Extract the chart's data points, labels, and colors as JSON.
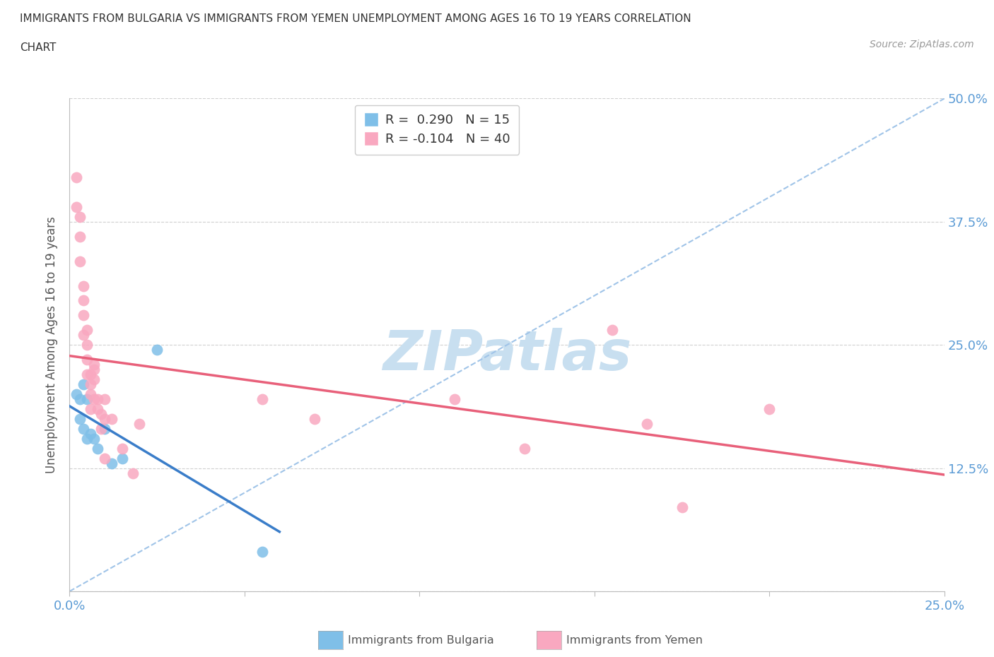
{
  "title_line1": "IMMIGRANTS FROM BULGARIA VS IMMIGRANTS FROM YEMEN UNEMPLOYMENT AMONG AGES 16 TO 19 YEARS CORRELATION",
  "title_line2": "CHART",
  "source": "Source: ZipAtlas.com",
  "ylabel_label": "Unemployment Among Ages 16 to 19 years",
  "xlim": [
    0.0,
    0.25
  ],
  "ylim": [
    0.0,
    0.5
  ],
  "bulgaria_R": 0.29,
  "bulgaria_N": 15,
  "yemen_R": -0.104,
  "yemen_N": 40,
  "bulgaria_color": "#7fbfe8",
  "yemen_color": "#f9a8c0",
  "bulgaria_line_color": "#3a7dc9",
  "yemen_line_color": "#e8607a",
  "dashed_line_color": "#a0c4e8",
  "grid_color": "#d0d0d0",
  "tick_color": "#5b9bd5",
  "watermark_color": "#c8dff0",
  "bulgaria_x": [
    0.002,
    0.003,
    0.003,
    0.004,
    0.004,
    0.005,
    0.005,
    0.006,
    0.007,
    0.008,
    0.01,
    0.012,
    0.015,
    0.025,
    0.055
  ],
  "bulgaria_y": [
    0.2,
    0.195,
    0.175,
    0.21,
    0.165,
    0.195,
    0.155,
    0.16,
    0.155,
    0.145,
    0.165,
    0.13,
    0.135,
    0.245,
    0.04
  ],
  "yemen_x": [
    0.002,
    0.002,
    0.003,
    0.003,
    0.003,
    0.004,
    0.004,
    0.004,
    0.004,
    0.005,
    0.005,
    0.005,
    0.005,
    0.006,
    0.006,
    0.006,
    0.006,
    0.007,
    0.007,
    0.007,
    0.007,
    0.008,
    0.008,
    0.009,
    0.009,
    0.01,
    0.01,
    0.01,
    0.012,
    0.015,
    0.018,
    0.02,
    0.055,
    0.07,
    0.11,
    0.13,
    0.155,
    0.165,
    0.175,
    0.2
  ],
  "yemen_y": [
    0.42,
    0.39,
    0.38,
    0.36,
    0.335,
    0.31,
    0.295,
    0.28,
    0.26,
    0.265,
    0.25,
    0.235,
    0.22,
    0.22,
    0.21,
    0.2,
    0.185,
    0.23,
    0.225,
    0.215,
    0.195,
    0.195,
    0.185,
    0.18,
    0.165,
    0.195,
    0.175,
    0.135,
    0.175,
    0.145,
    0.12,
    0.17,
    0.195,
    0.175,
    0.195,
    0.145,
    0.265,
    0.17,
    0.085,
    0.185
  ]
}
